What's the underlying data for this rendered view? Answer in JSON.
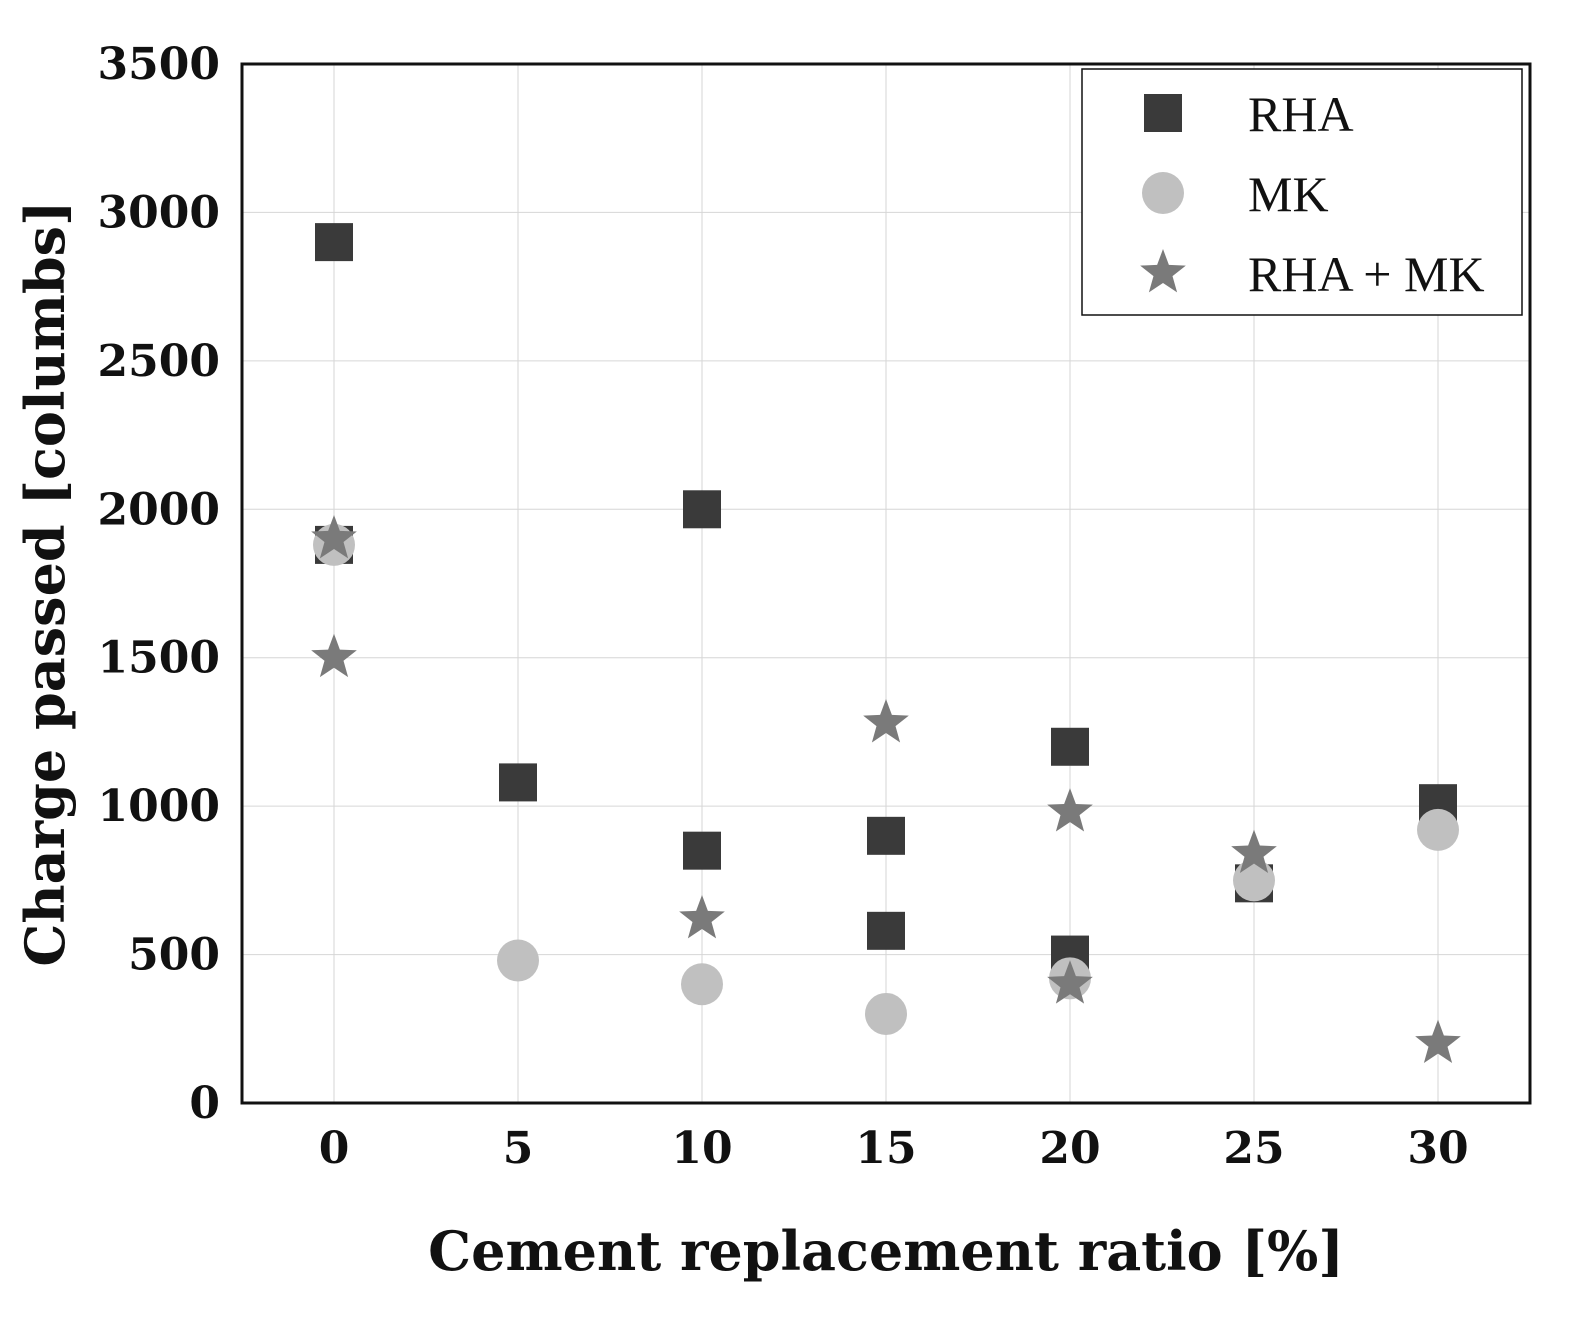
{
  "chart_data": {
    "type": "scatter",
    "title": "",
    "xlabel": "Cement replacement ratio [%]",
    "ylabel": "Charge passed [columbs]",
    "xlim": [
      -2.5,
      32.5
    ],
    "ylim": [
      0,
      3500
    ],
    "xticks": [
      0,
      5,
      10,
      15,
      20,
      25,
      30
    ],
    "yticks": [
      0,
      500,
      1000,
      1500,
      2000,
      2500,
      3000,
      3500
    ],
    "grid": true,
    "legend_position": "top-right",
    "series": [
      {
        "name": "RHA",
        "marker": "square",
        "color": "#3a3a3a",
        "points": [
          {
            "x": 0,
            "y": 2900
          },
          {
            "x": 0,
            "y": 1880
          },
          {
            "x": 5,
            "y": 1080
          },
          {
            "x": 10,
            "y": 2000
          },
          {
            "x": 10,
            "y": 850
          },
          {
            "x": 15,
            "y": 900
          },
          {
            "x": 15,
            "y": 580
          },
          {
            "x": 20,
            "y": 1200
          },
          {
            "x": 20,
            "y": 500
          },
          {
            "x": 25,
            "y": 740
          },
          {
            "x": 30,
            "y": 1010
          }
        ]
      },
      {
        "name": "MK",
        "marker": "circle",
        "color": "#c0c0c0",
        "points": [
          {
            "x": 0,
            "y": 1880
          },
          {
            "x": 5,
            "y": 480
          },
          {
            "x": 10,
            "y": 400
          },
          {
            "x": 15,
            "y": 300
          },
          {
            "x": 20,
            "y": 420
          },
          {
            "x": 25,
            "y": 750
          },
          {
            "x": 30,
            "y": 920
          }
        ]
      },
      {
        "name": "RHA + MK",
        "marker": "star",
        "color": "#7a7a7a",
        "points": [
          {
            "x": 0,
            "y": 1900
          },
          {
            "x": 0,
            "y": 1500
          },
          {
            "x": 10,
            "y": 620
          },
          {
            "x": 15,
            "y": 1280
          },
          {
            "x": 20,
            "y": 980
          },
          {
            "x": 20,
            "y": 400
          },
          {
            "x": 25,
            "y": 840
          },
          {
            "x": 30,
            "y": 200
          }
        ]
      }
    ]
  }
}
